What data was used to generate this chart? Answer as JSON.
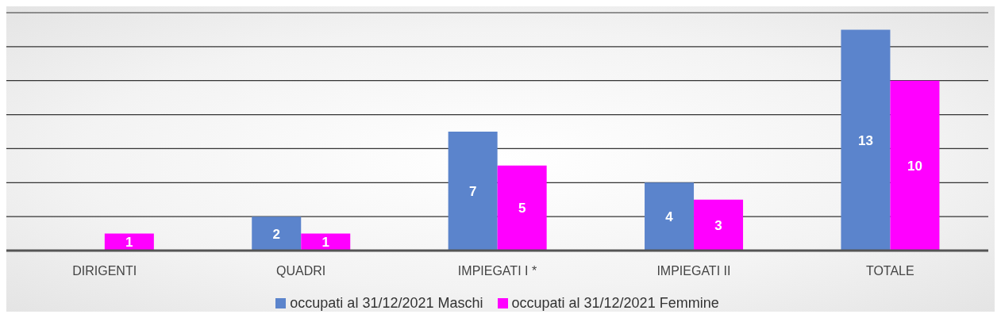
{
  "chart_data": {
    "type": "bar",
    "categories": [
      "DIRIGENTI",
      "QUADRI",
      "IMPIEGATI I *",
      "IMPIEGATI II",
      "TOTALE"
    ],
    "series": [
      {
        "name": "occupati al 31/12/2021 Maschi",
        "color": "#5b84cc",
        "values": [
          null,
          2,
          7,
          4,
          13
        ]
      },
      {
        "name": "occupati al 31/12/2021 Femmine",
        "color": "#ff00ff",
        "values": [
          1,
          1,
          5,
          3,
          10
        ]
      }
    ],
    "ylim": [
      0,
      14
    ],
    "yticks": [
      {
        "value": 0,
        "label": null
      },
      {
        "value": 2,
        "label": null
      },
      {
        "value": 4,
        "label": null
      },
      {
        "value": 6,
        "label": null
      },
      {
        "value": 8,
        "label": null
      },
      {
        "value": 10,
        "label": null
      },
      {
        "value": 12,
        "label": null
      },
      {
        "value": 14,
        "label": null
      }
    ],
    "tick_labels": "x",
    "grid": "y",
    "legend": "bottom",
    "data_labels": true
  }
}
